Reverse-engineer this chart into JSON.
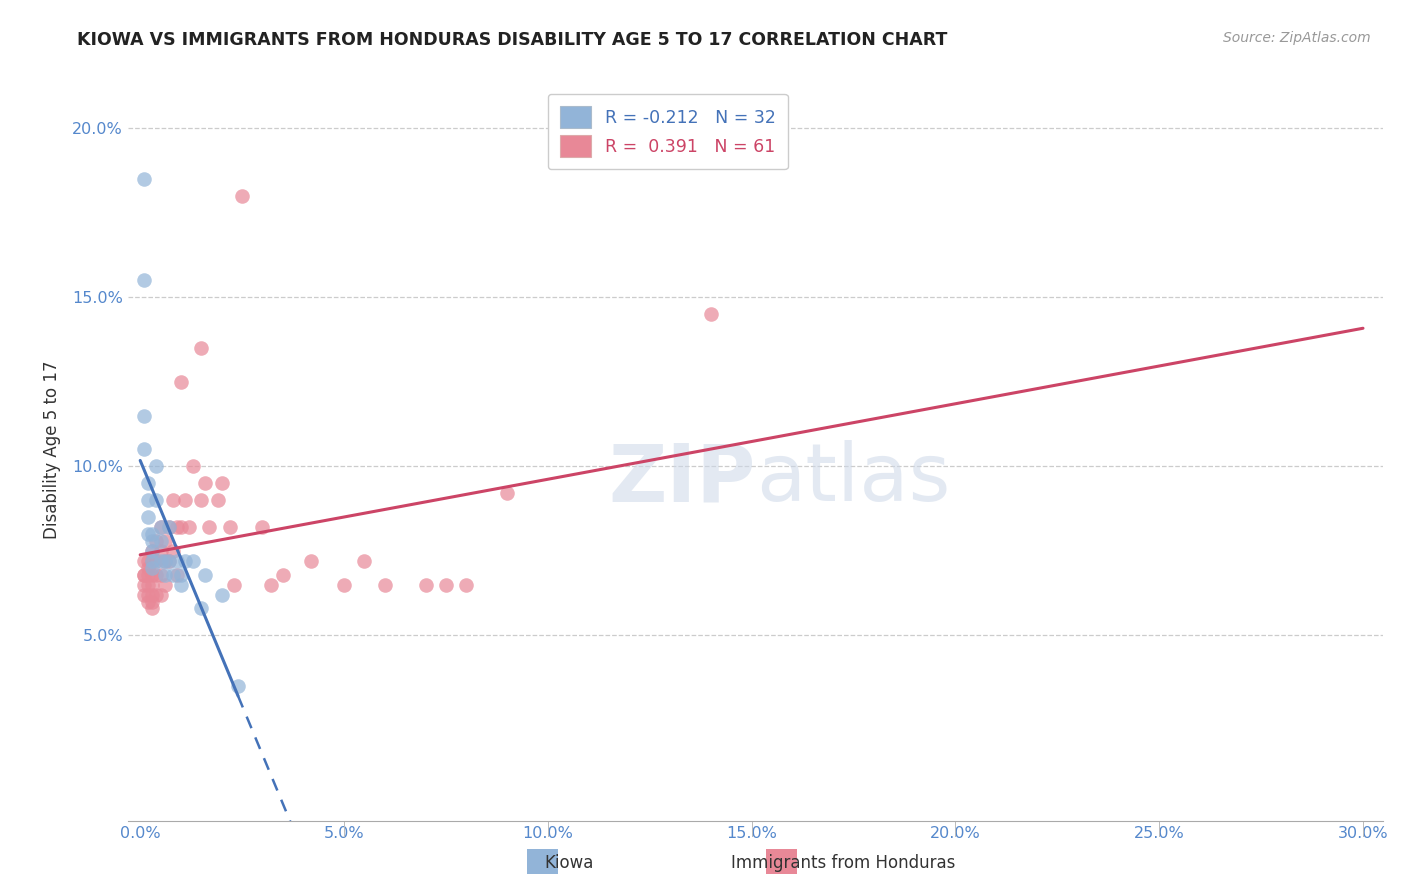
{
  "title": "KIOWA VS IMMIGRANTS FROM HONDURAS DISABILITY AGE 5 TO 17 CORRELATION CHART",
  "source": "Source: ZipAtlas.com",
  "ylabel": "Disability Age 5 to 17",
  "xlabel_kiowa": "Kiowa",
  "xlabel_honduras": "Immigrants from Honduras",
  "xlim": [
    -0.003,
    0.305
  ],
  "ylim": [
    -0.005,
    0.215
  ],
  "xticks": [
    0.0,
    0.05,
    0.1,
    0.15,
    0.2,
    0.25,
    0.3
  ],
  "xtick_labels": [
    "0.0%",
    "5.0%",
    "10.0%",
    "15.0%",
    "20.0%",
    "25.0%",
    "30.0%"
  ],
  "yticks": [
    0.05,
    0.1,
    0.15,
    0.2
  ],
  "ytick_labels": [
    "5.0%",
    "10.0%",
    "15.0%",
    "20.0%"
  ],
  "kiowa_color": "#92b4d8",
  "honduras_color": "#e88897",
  "trend_kiowa_color": "#4472b8",
  "trend_honduras_color": "#cc4466",
  "legend_r_kiowa": "-0.212",
  "legend_n_kiowa": "32",
  "legend_r_honduras": "0.391",
  "legend_n_honduras": "61",
  "kiowa_x": [
    0.001,
    0.001,
    0.001,
    0.001,
    0.002,
    0.002,
    0.002,
    0.002,
    0.003,
    0.003,
    0.003,
    0.003,
    0.003,
    0.004,
    0.004,
    0.005,
    0.005,
    0.005,
    0.006,
    0.006,
    0.007,
    0.007,
    0.008,
    0.009,
    0.01,
    0.01,
    0.011,
    0.013,
    0.015,
    0.016,
    0.02,
    0.024
  ],
  "kiowa_y": [
    0.185,
    0.155,
    0.115,
    0.105,
    0.095,
    0.09,
    0.085,
    0.08,
    0.08,
    0.078,
    0.075,
    0.072,
    0.07,
    0.1,
    0.09,
    0.082,
    0.078,
    0.072,
    0.068,
    0.072,
    0.082,
    0.072,
    0.068,
    0.072,
    0.068,
    0.065,
    0.072,
    0.072,
    0.058,
    0.068,
    0.062,
    0.035
  ],
  "honduras_x": [
    0.001,
    0.001,
    0.001,
    0.001,
    0.001,
    0.002,
    0.002,
    0.002,
    0.002,
    0.002,
    0.002,
    0.003,
    0.003,
    0.003,
    0.003,
    0.003,
    0.003,
    0.003,
    0.004,
    0.004,
    0.004,
    0.004,
    0.005,
    0.005,
    0.005,
    0.005,
    0.006,
    0.006,
    0.006,
    0.007,
    0.007,
    0.008,
    0.008,
    0.009,
    0.009,
    0.01,
    0.01,
    0.011,
    0.012,
    0.013,
    0.015,
    0.015,
    0.016,
    0.017,
    0.019,
    0.02,
    0.022,
    0.023,
    0.025,
    0.03,
    0.032,
    0.035,
    0.042,
    0.05,
    0.055,
    0.06,
    0.07,
    0.075,
    0.08,
    0.09,
    0.14
  ],
  "honduras_y": [
    0.072,
    0.068,
    0.068,
    0.065,
    0.062,
    0.072,
    0.07,
    0.068,
    0.065,
    0.062,
    0.06,
    0.075,
    0.072,
    0.068,
    0.065,
    0.062,
    0.06,
    0.058,
    0.078,
    0.072,
    0.068,
    0.062,
    0.082,
    0.075,
    0.068,
    0.062,
    0.078,
    0.072,
    0.065,
    0.082,
    0.072,
    0.09,
    0.075,
    0.082,
    0.068,
    0.125,
    0.082,
    0.09,
    0.082,
    0.1,
    0.135,
    0.09,
    0.095,
    0.082,
    0.09,
    0.095,
    0.082,
    0.065,
    0.18,
    0.082,
    0.065,
    0.068,
    0.072,
    0.065,
    0.072,
    0.065,
    0.065,
    0.065,
    0.065,
    0.092,
    0.145
  ],
  "watermark_zip": "ZIP",
  "watermark_atlas": "atlas",
  "background_color": "#ffffff",
  "grid_color": "#cccccc",
  "kiowa_trend_x_end": 0.024,
  "trend_line_full_x_end": 0.3
}
